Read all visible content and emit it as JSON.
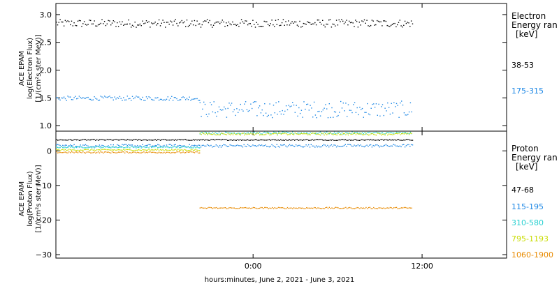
{
  "chart_data": [
    {
      "type": "scatter",
      "ylabel_lines": [
        "ACE EPAM",
        "log(Electron Flux)",
        "[1/(cm²s ster MeV)]"
      ],
      "ylim": [
        0.9,
        3.2
      ],
      "yticks": [
        {
          "value": 1.0,
          "label": "1.0"
        },
        {
          "value": 1.5,
          "label": "1.5"
        },
        {
          "value": 2.0,
          "label": "2.0"
        },
        {
          "value": 2.5,
          "label": "2.5"
        },
        {
          "value": 3.0,
          "label": "3.0"
        }
      ],
      "legend_title_lines": [
        "Electron",
        "Energy ran",
        "[keV]"
      ],
      "series": [
        {
          "name": "38-53",
          "color": "#000000",
          "x_start": -14.0,
          "x_end": 11.3,
          "base": 2.85,
          "amplitude": 0.07
        },
        {
          "name": "175-315",
          "color": "#1e88e5",
          "segments": [
            {
              "x_start": -14.0,
              "x_end": -3.8,
              "base": 1.5,
              "amplitude": 0.04
            },
            {
              "x_start": -3.8,
              "x_end": 11.3,
              "base": 1.3,
              "amplitude": 0.15
            }
          ]
        }
      ]
    },
    {
      "type": "scatter",
      "ylabel_lines": [
        "ACE EPAM",
        "log(Proton Flux)",
        "[1/(cm²s ster MeV)]"
      ],
      "ylim": [
        -31,
        5.7
      ],
      "yticks": [
        {
          "value": 0,
          "label": "0"
        },
        {
          "value": -10,
          "label": "−10"
        },
        {
          "value": -20,
          "label": "−20"
        },
        {
          "value": -30,
          "label": "−30"
        }
      ],
      "legend_title_lines": [
        "Proton",
        "Energy ran",
        "[keV]"
      ],
      "series": [
        {
          "name": "47-68",
          "color": "#000000",
          "x_start": -14.0,
          "x_end": 11.3,
          "base": 3.3,
          "amplitude": 0.15
        },
        {
          "name": "115-195",
          "color": "#1e88e5",
          "x_start": -14.0,
          "x_end": 11.3,
          "base": 1.6,
          "amplitude": 0.4
        },
        {
          "name": "310-580",
          "color": "#26d0d0",
          "segments": [
            {
              "x_start": -14.0,
              "x_end": -3.8,
              "base": 1.2,
              "amplitude": 0.2
            },
            {
              "x_start": -3.8,
              "x_end": 11.3,
              "base": 5.3,
              "amplitude": 0.3
            }
          ]
        },
        {
          "name": "795-1193",
          "color": "#c8dc00",
          "segments": [
            {
              "x_start": -14.0,
              "x_end": -3.8,
              "base": 0.4,
              "amplitude": 0.2
            },
            {
              "x_start": -3.8,
              "x_end": 11.3,
              "base": 5.0,
              "amplitude": 0.3
            }
          ]
        },
        {
          "name": "1060-1900",
          "color": "#e88a00",
          "segments": [
            {
              "x_start": -14.0,
              "x_end": -3.8,
              "base": -0.3,
              "amplitude": 0.2
            },
            {
              "x_start": -3.8,
              "x_end": 11.3,
              "base": -16.4,
              "amplitude": 0.2
            }
          ]
        }
      ]
    }
  ],
  "xaxis": {
    "xlim": [
      -14.0,
      18.0
    ],
    "xticks": [
      {
        "value": 0,
        "label": "0:00"
      },
      {
        "value": 12,
        "label": "12:00"
      }
    ],
    "xlabel": "hours:minutes, June  2, 2021 - June  3, 2021"
  }
}
